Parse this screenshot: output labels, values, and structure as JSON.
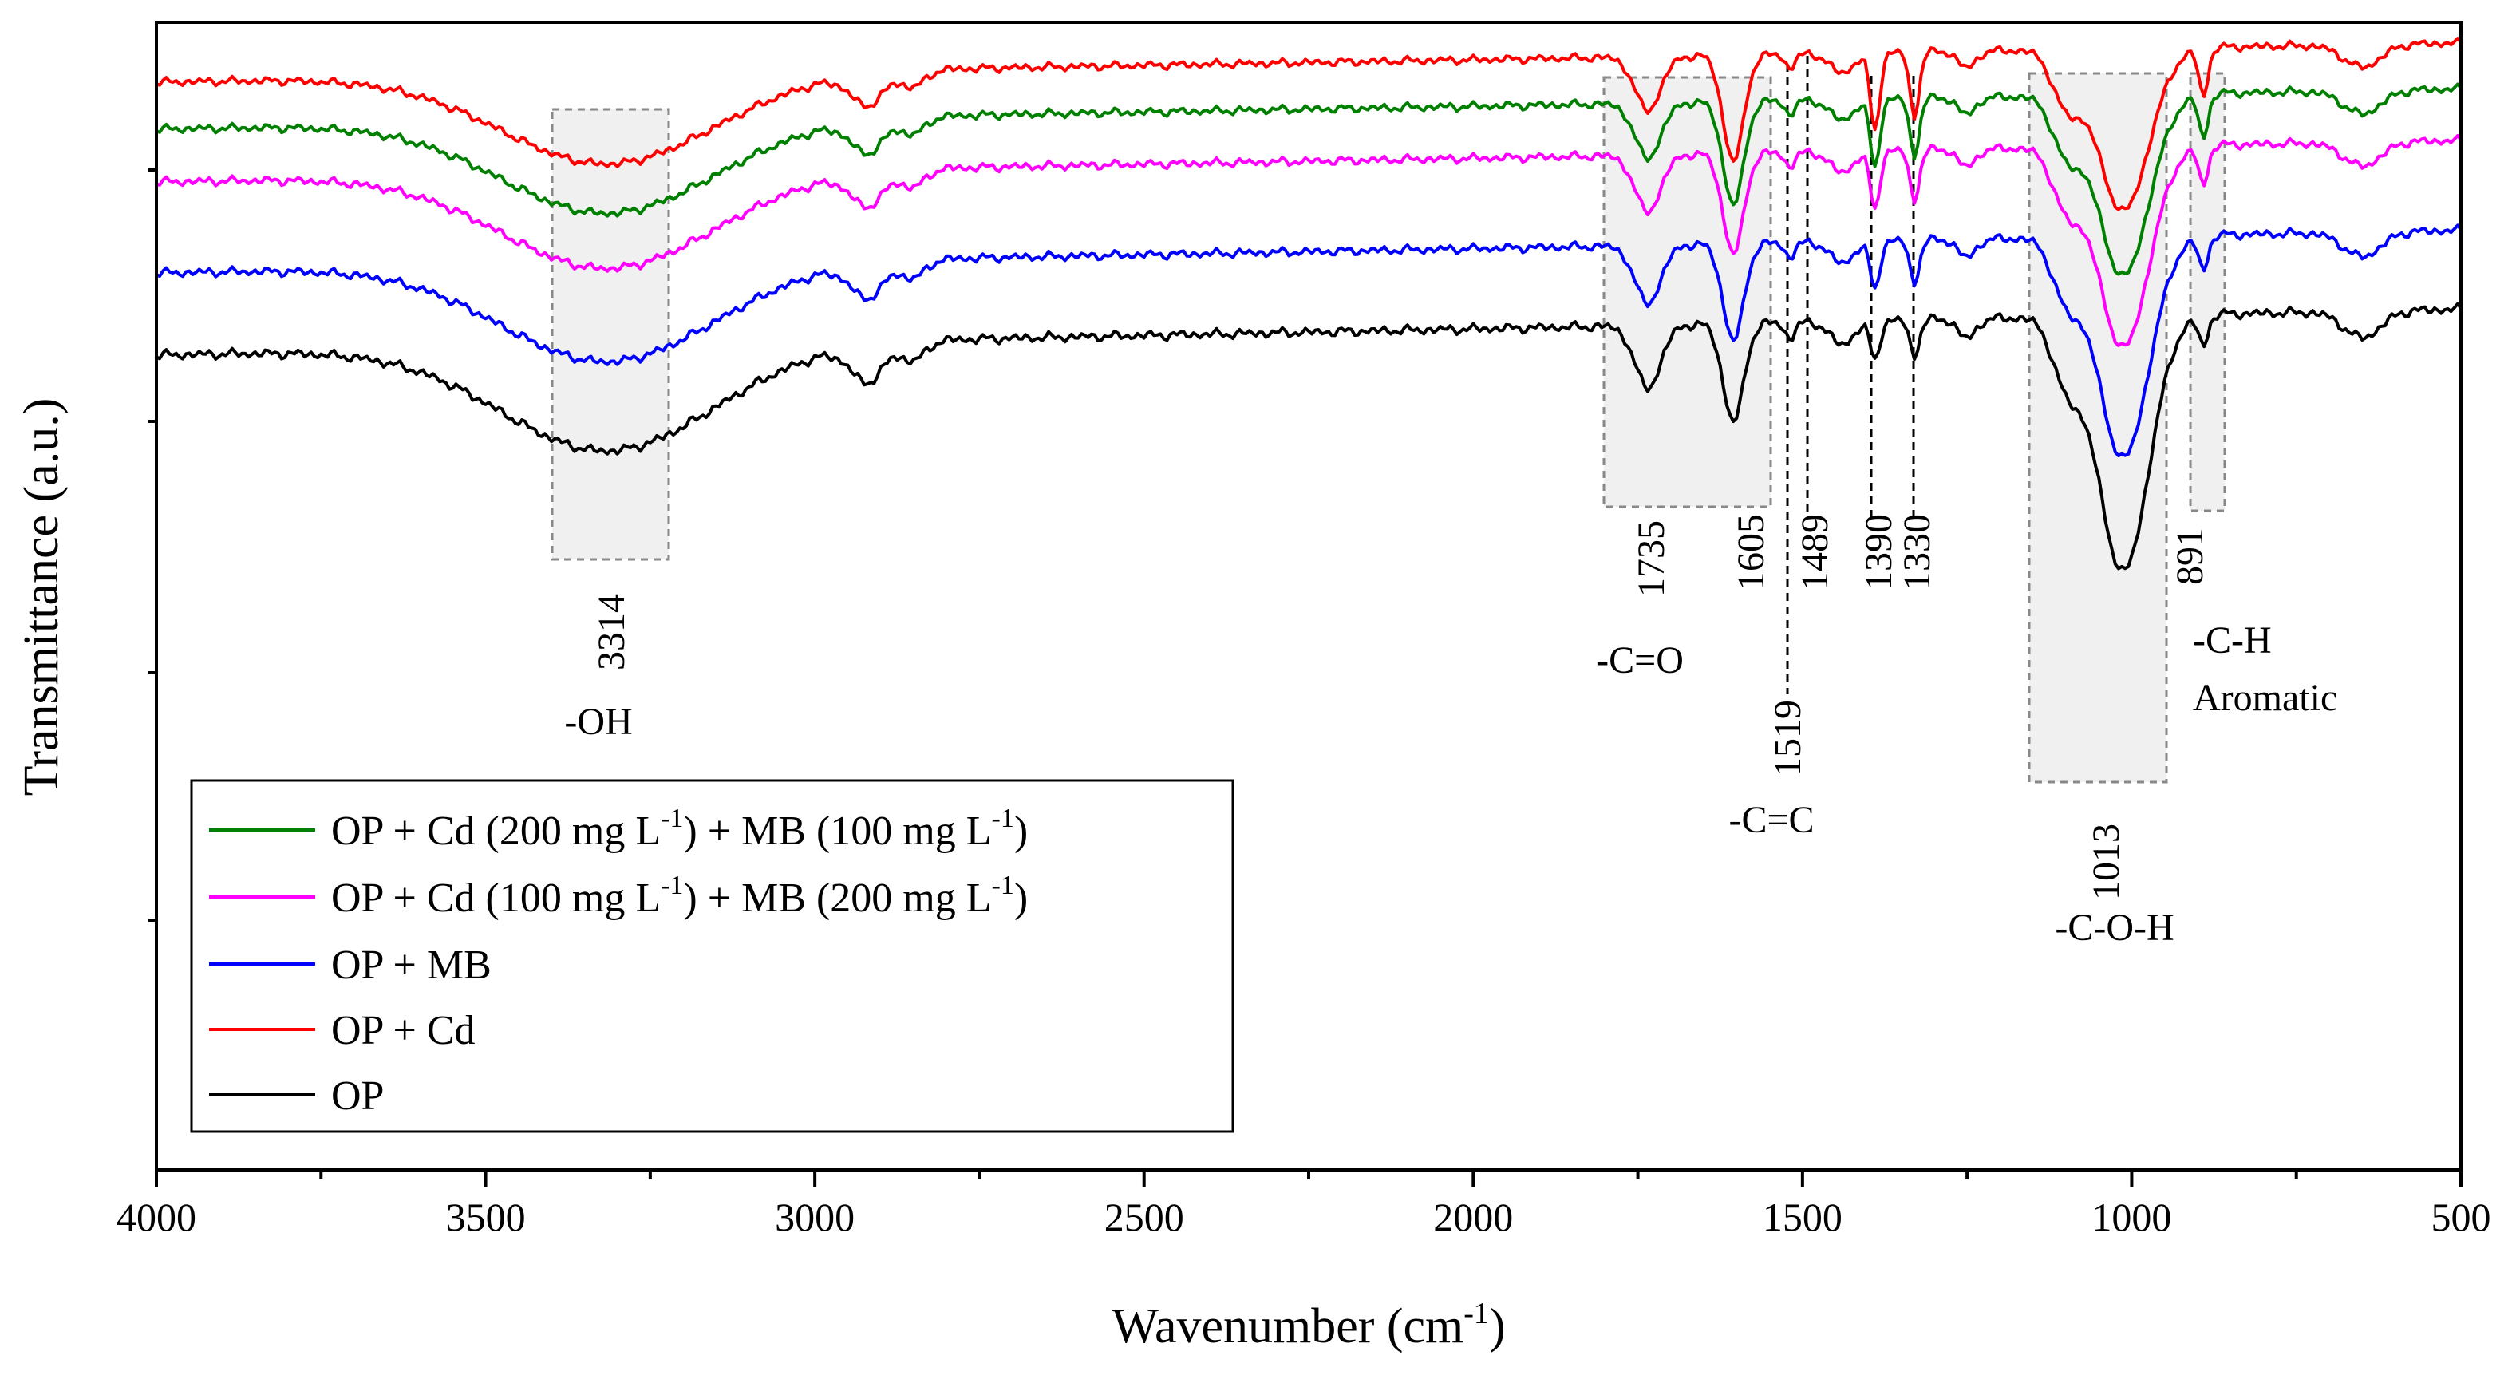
{
  "chart_data": {
    "type": "line",
    "title": "",
    "xlabel": "Wavenumber (cm",
    "xlabel_sup": "-1",
    "xlabel_end": ")",
    "ylabel": "Transmittance (a.u.)",
    "xlim": [
      4000,
      500
    ],
    "x_ticks": [
      "4000",
      "3500",
      "3000",
      "2500",
      "2000",
      "1500",
      "1000",
      "500"
    ],
    "series": [
      {
        "name": "OP",
        "color": "#000000",
        "offset": 0
      },
      {
        "name": "OP + MB",
        "color": "#0000ff",
        "offset": 1
      },
      {
        "name": "OP + Cd (100 mg L-1) + MB (200 mg L-1)",
        "color": "#ff00ff",
        "offset": 2
      },
      {
        "name": "OP + Cd (200 mg L-1) + MB (100 mg L-1)",
        "color": "#008000",
        "offset": 3
      },
      {
        "name": "OP + Cd",
        "color": "#ff0000",
        "offset": 4
      }
    ],
    "legend": [
      {
        "color": "#008000",
        "parts": [
          "OP + Cd (200 mg L",
          "-1",
          ") + MB (100 mg L",
          "-1",
          ")"
        ]
      },
      {
        "color": "#ff00ff",
        "parts": [
          "OP + Cd (100 mg L",
          "-1",
          ") + MB (200 mg L",
          "-1",
          ")"
        ]
      },
      {
        "color": "#0000ff",
        "parts": [
          "OP + MB",
          "",
          "",
          "",
          ""
        ]
      },
      {
        "color": "#ff0000",
        "parts": [
          "OP + Cd",
          "",
          "",
          "",
          ""
        ]
      },
      {
        "color": "#000000",
        "parts": [
          "OP",
          "",
          "",
          "",
          ""
        ]
      }
    ],
    "legend_position": "bottom-left",
    "peak_labels": [
      "3314",
      "1735",
      "1605",
      "1489",
      "1390",
      "1330",
      "1519",
      "1013",
      "891"
    ],
    "group_labels": [
      "-OH",
      "-C=O",
      "-C=C",
      "-C-O-H",
      "-C-H",
      "Aromatic"
    ],
    "peaks": [
      3314,
      1735,
      1605,
      1519,
      1489,
      1390,
      1330,
      1013,
      891
    ]
  }
}
